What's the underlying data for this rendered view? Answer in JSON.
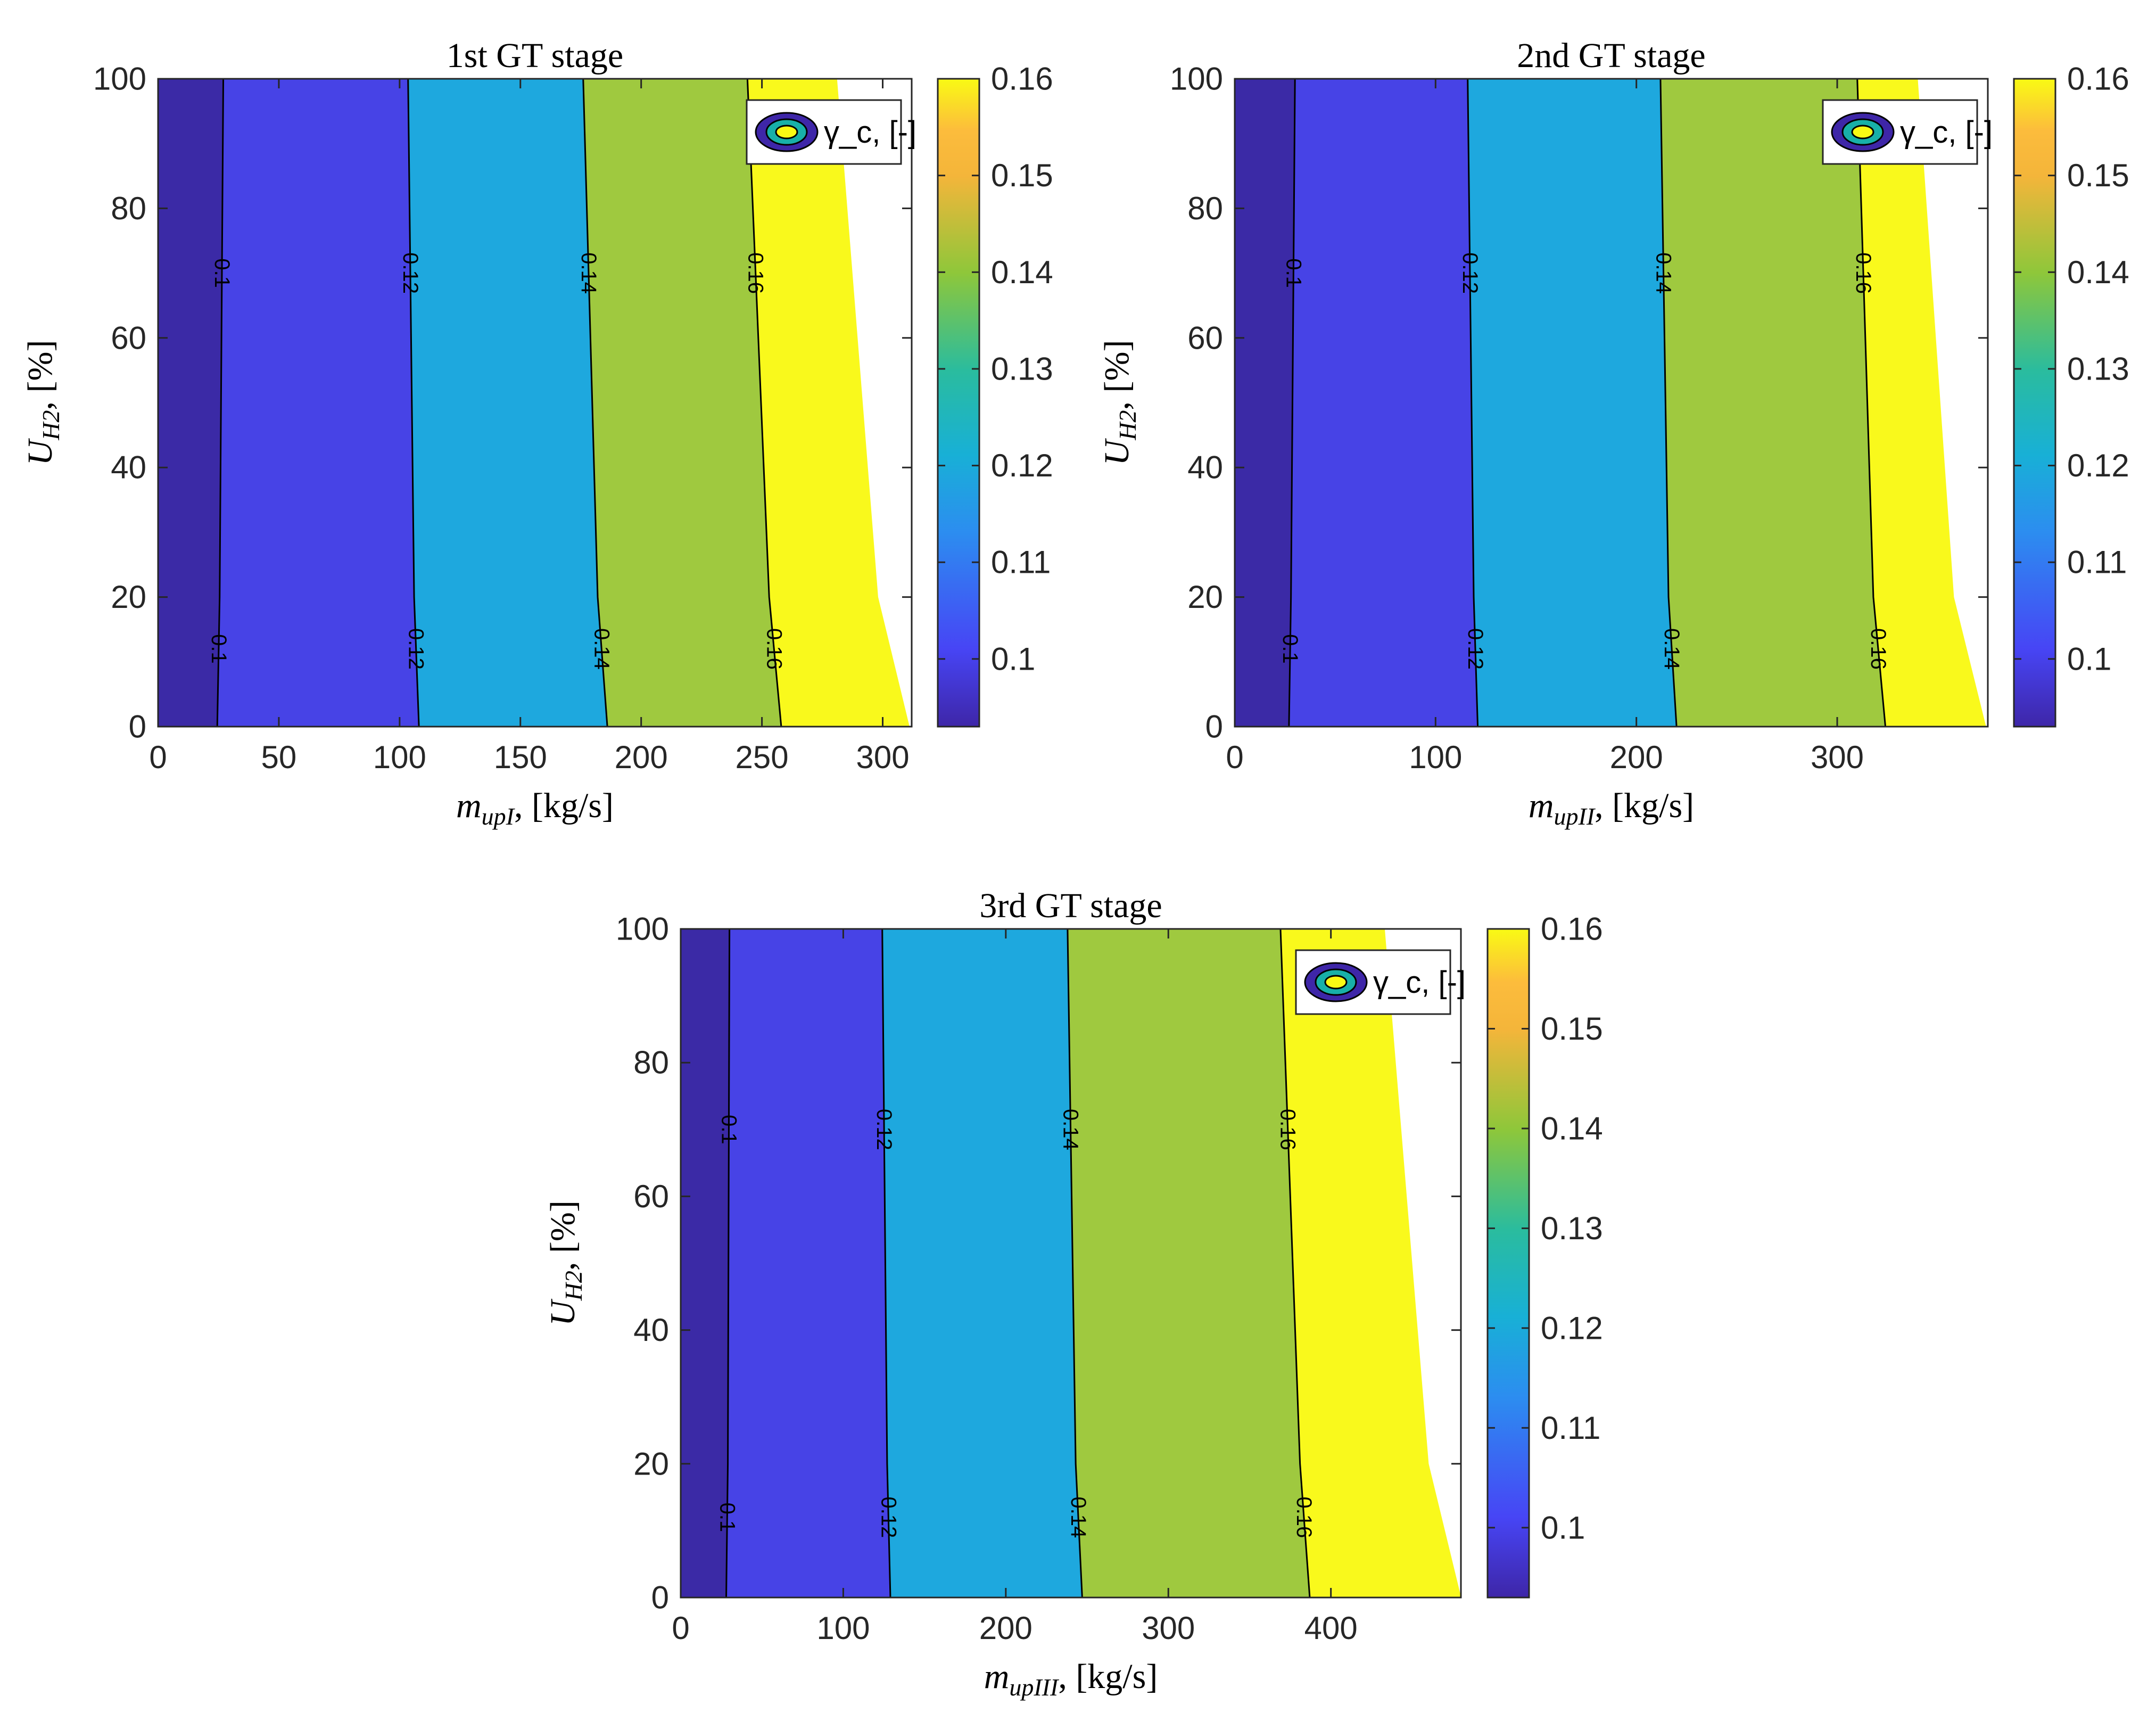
{
  "colors": {
    "level_fills": [
      "#3b2aa6",
      "#4743e6",
      "#1ea8de",
      "#9fc93f",
      "#f9f91c"
    ],
    "colormap": [
      "#3e26a8",
      "#4745f5",
      "#2c8df0",
      "#18b0d6",
      "#2abc9e",
      "#8ec73a",
      "#f4b53a",
      "#fcbc3c",
      "#f9fa14"
    ],
    "axis": "#262626",
    "contour_line": "#000000"
  },
  "legend_label": "γ_c, [-]",
  "chart_data": [
    {
      "type": "contourf",
      "title": "1st GT stage",
      "xlabel": "m_upI, [kg/s]",
      "ylabel": "U_H2, [%]",
      "xlim": [
        0,
        312
      ],
      "ylim": [
        0,
        100
      ],
      "xticks": [
        "0",
        "50",
        "100",
        "150",
        "200",
        "250",
        "300"
      ],
      "xtick_values": [
        0,
        50,
        100,
        150,
        200,
        250,
        300
      ],
      "yticks": [
        "0",
        "20",
        "40",
        "60",
        "80",
        "100"
      ],
      "yvals": [
        0,
        20,
        100
      ],
      "contours": [
        {
          "level": 0.1,
          "label": "0.1",
          "x_at_y": [
            24.5,
            25.5,
            27
          ]
        },
        {
          "level": 0.12,
          "label": "0.12",
          "x_at_y": [
            108,
            106,
            103.5
          ]
        },
        {
          "level": 0.14,
          "label": "0.14",
          "x_at_y": [
            186,
            182,
            176
          ]
        },
        {
          "level": 0.16,
          "label": "0.16",
          "x_at_y": [
            258,
            253,
            244
          ]
        }
      ],
      "domain_edge_x_at_y": [
        311,
        298,
        281
      ],
      "colorbar": {
        "min": 0.093,
        "max": 0.16,
        "ticks": [
          "0.1",
          "0.11",
          "0.12",
          "0.13",
          "0.14",
          "0.15",
          "0.16"
        ],
        "tick_values": [
          0.1,
          0.11,
          0.12,
          0.13,
          0.14,
          0.15,
          0.16
        ]
      }
    },
    {
      "type": "contourf",
      "title": "2nd GT stage",
      "xlabel": "m_upII, [kg/s]",
      "ylabel": "U_H2, [%]",
      "xlim": [
        0,
        375
      ],
      "ylim": [
        0,
        100
      ],
      "xticks": [
        "0",
        "100",
        "200",
        "300"
      ],
      "xtick_values": [
        0,
        100,
        200,
        300
      ],
      "yticks": [
        "0",
        "20",
        "40",
        "60",
        "80",
        "100"
      ],
      "yvals": [
        0,
        20,
        100
      ],
      "contours": [
        {
          "level": 0.1,
          "label": "0.1",
          "x_at_y": [
            27,
            28,
            30
          ]
        },
        {
          "level": 0.12,
          "label": "0.12",
          "x_at_y": [
            121,
            119,
            116
          ]
        },
        {
          "level": 0.14,
          "label": "0.14",
          "x_at_y": [
            220,
            216,
            212
          ]
        },
        {
          "level": 0.16,
          "label": "0.16",
          "x_at_y": [
            324,
            318,
            310
          ]
        }
      ],
      "domain_edge_x_at_y": [
        374,
        358,
        340
      ],
      "colorbar": {
        "min": 0.093,
        "max": 0.16,
        "ticks": [
          "0.1",
          "0.11",
          "0.12",
          "0.13",
          "0.14",
          "0.15",
          "0.16"
        ],
        "tick_values": [
          0.1,
          0.11,
          0.12,
          0.13,
          0.14,
          0.15,
          0.16
        ]
      }
    },
    {
      "type": "contourf",
      "title": "3rd GT stage",
      "xlabel": "m_upIII, [kg/s]",
      "ylabel": "U_H2, [%]",
      "xlim": [
        0,
        480
      ],
      "ylim": [
        0,
        100
      ],
      "xticks": [
        "0",
        "100",
        "200",
        "300",
        "400"
      ],
      "xtick_values": [
        0,
        100,
        200,
        300,
        400
      ],
      "yticks": [
        "0",
        "20",
        "40",
        "60",
        "80",
        "100"
      ],
      "yvals": [
        0,
        20,
        100
      ],
      "contours": [
        {
          "level": 0.1,
          "label": "0.1",
          "x_at_y": [
            28,
            29,
            30
          ]
        },
        {
          "level": 0.12,
          "label": "0.12",
          "x_at_y": [
            129,
            127,
            124
          ]
        },
        {
          "level": 0.14,
          "label": "0.14",
          "x_at_y": [
            247,
            243,
            238
          ]
        },
        {
          "level": 0.16,
          "label": "0.16",
          "x_at_y": [
            387,
            381,
            369
          ]
        }
      ],
      "domain_edge_x_at_y": [
        480,
        460,
        433
      ],
      "colorbar": {
        "min": 0.093,
        "max": 0.16,
        "ticks": [
          "0.1",
          "0.11",
          "0.12",
          "0.13",
          "0.14",
          "0.15",
          "0.16"
        ],
        "tick_values": [
          0.1,
          0.11,
          0.12,
          0.13,
          0.14,
          0.15,
          0.16
        ]
      }
    }
  ]
}
